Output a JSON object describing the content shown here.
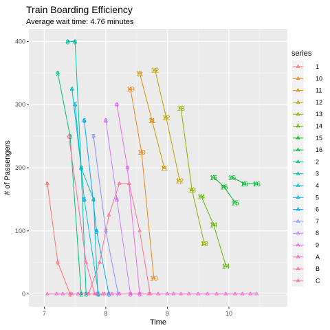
{
  "chart_data": {
    "type": "line",
    "title": "Train Boarding Efficiency",
    "subtitle": "Average wait time: 4.76 minutes",
    "xlabel": "Time",
    "ylabel": "# of Passengers",
    "xlim": [
      6.75,
      10.95
    ],
    "ylim": [
      -20,
      420
    ],
    "x_ticks": [
      7,
      8,
      9,
      10
    ],
    "x_tick_labels": [
      "7",
      "8",
      "9",
      "10"
    ],
    "y_ticks": [
      0,
      100,
      200,
      300,
      400
    ],
    "y_tick_labels": [
      "0",
      "100",
      "200",
      "300",
      "400"
    ],
    "grid": true,
    "legend_title": "series",
    "legend_position": "right",
    "series": [
      {
        "name": "1",
        "color": "#F8766D",
        "points": [
          {
            "x": 7.05,
            "y": 175,
            "label": "1"
          },
          {
            "x": 7.22,
            "y": 50,
            "label": "1"
          },
          {
            "x": 7.42,
            "y": 0,
            "label": "1"
          }
        ]
      },
      {
        "name": "10",
        "color": "#E7861B",
        "points": [
          {
            "x": 8.4,
            "y": 325,
            "label": "10"
          },
          {
            "x": 8.58,
            "y": 225,
            "label": "10"
          },
          {
            "x": 8.78,
            "y": 25,
            "label": "10"
          }
        ]
      },
      {
        "name": "11",
        "color": "#D39200",
        "points": [
          {
            "x": 8.55,
            "y": 350,
            "label": "11"
          },
          {
            "x": 8.75,
            "y": 275,
            "label": "11"
          },
          {
            "x": 8.95,
            "y": 200,
            "label": "11"
          }
        ]
      },
      {
        "name": "12",
        "color": "#BB9D00",
        "points": [
          {
            "x": 8.8,
            "y": 355,
            "label": "12"
          },
          {
            "x": 8.98,
            "y": 280,
            "label": "12"
          },
          {
            "x": 9.2,
            "y": 180,
            "label": "12"
          }
        ]
      },
      {
        "name": "13",
        "color": "#93AA00",
        "points": [
          {
            "x": 9.22,
            "y": 295,
            "label": "13"
          },
          {
            "x": 9.4,
            "y": 165,
            "label": "13"
          },
          {
            "x": 9.6,
            "y": 80,
            "label": "13"
          }
        ]
      },
      {
        "name": "14",
        "color": "#5EB300",
        "points": [
          {
            "x": 9.55,
            "y": 155,
            "label": "14"
          },
          {
            "x": 9.75,
            "y": 110,
            "label": "14"
          },
          {
            "x": 9.95,
            "y": 45,
            "label": "14"
          }
        ]
      },
      {
        "name": "15",
        "color": "#00B81F",
        "points": [
          {
            "x": 9.75,
            "y": 185,
            "label": "15"
          },
          {
            "x": 9.92,
            "y": 170,
            "label": "15"
          },
          {
            "x": 10.1,
            "y": 145,
            "label": "15"
          }
        ]
      },
      {
        "name": "16",
        "color": "#00BA38",
        "points": [
          {
            "x": 10.05,
            "y": 185,
            "label": "16"
          },
          {
            "x": 10.25,
            "y": 175,
            "label": "16"
          },
          {
            "x": 10.45,
            "y": 175,
            "label": "16"
          }
        ]
      },
      {
        "name": "2",
        "color": "#00BF74",
        "points": [
          {
            "x": 7.22,
            "y": 350,
            "label": "2"
          },
          {
            "x": 7.42,
            "y": 250,
            "label": "2"
          },
          {
            "x": 7.6,
            "y": 0,
            "label": "2"
          }
        ]
      },
      {
        "name": "3",
        "color": "#00C19F",
        "points": [
          {
            "x": 7.38,
            "y": 400,
            "label": "3"
          },
          {
            "x": 7.5,
            "y": 400,
            "label": "3"
          },
          {
            "x": 7.6,
            "y": 200,
            "label": "3"
          },
          {
            "x": 7.68,
            "y": 0,
            "label": "3"
          }
        ]
      },
      {
        "name": "4",
        "color": "#00BFC4",
        "points": [
          {
            "x": 7.45,
            "y": 325,
            "label": "4"
          },
          {
            "x": 7.6,
            "y": 200,
            "label": "4"
          },
          {
            "x": 7.8,
            "y": 150,
            "label": "4"
          },
          {
            "x": 7.87,
            "y": 0,
            "label": "4"
          }
        ]
      },
      {
        "name": "5",
        "color": "#00B8E7",
        "points": [
          {
            "x": 7.5,
            "y": 300,
            "label": "5"
          },
          {
            "x": 7.65,
            "y": 150,
            "label": "5"
          },
          {
            "x": 7.88,
            "y": 0,
            "label": "5"
          }
        ]
      },
      {
        "name": "6",
        "color": "#00A9FF",
        "points": [
          {
            "x": 7.65,
            "y": 275,
            "label": "6"
          },
          {
            "x": 7.85,
            "y": 100,
            "label": "6"
          },
          {
            "x": 8.05,
            "y": 0,
            "label": "6"
          }
        ]
      },
      {
        "name": "7",
        "color": "#8494FF",
        "points": [
          {
            "x": 7.8,
            "y": 250,
            "label": "7"
          },
          {
            "x": 8.0,
            "y": 100,
            "label": "7"
          },
          {
            "x": 8.2,
            "y": 0,
            "label": "7"
          }
        ]
      },
      {
        "name": "8",
        "color": "#C77CFF",
        "points": [
          {
            "x": 8.0,
            "y": 275,
            "label": "8"
          },
          {
            "x": 8.18,
            "y": 150,
            "label": "8"
          },
          {
            "x": 8.4,
            "y": 0,
            "label": "8"
          }
        ]
      },
      {
        "name": "9",
        "color": "#ED68ED",
        "points": [
          {
            "x": 8.18,
            "y": 300,
            "label": "9"
          },
          {
            "x": 8.35,
            "y": 200,
            "label": "9"
          },
          {
            "x": 8.55,
            "y": 0,
            "label": "9"
          }
        ]
      },
      {
        "name": "A",
        "color": "#FF61CC",
        "points": [
          {
            "x": 7.05,
            "y": 0
          },
          {
            "x": 7.2,
            "y": 0
          },
          {
            "x": 7.3,
            "y": 0
          },
          {
            "x": 7.45,
            "y": 0
          },
          {
            "x": 7.55,
            "y": 0
          },
          {
            "x": 7.72,
            "y": 0
          },
          {
            "x": 7.85,
            "y": 0
          },
          {
            "x": 7.98,
            "y": 0
          },
          {
            "x": 8.1,
            "y": 0
          },
          {
            "x": 8.22,
            "y": 0
          },
          {
            "x": 8.4,
            "y": 0
          },
          {
            "x": 8.55,
            "y": 0
          },
          {
            "x": 8.7,
            "y": 0
          },
          {
            "x": 8.85,
            "y": 0
          },
          {
            "x": 9.0,
            "y": 0
          },
          {
            "x": 9.1,
            "y": 0
          },
          {
            "x": 9.22,
            "y": 0
          },
          {
            "x": 9.35,
            "y": 0
          },
          {
            "x": 9.5,
            "y": 0
          },
          {
            "x": 9.65,
            "y": 0
          },
          {
            "x": 9.8,
            "y": 0
          },
          {
            "x": 9.95,
            "y": 0
          },
          {
            "x": 10.1,
            "y": 0
          },
          {
            "x": 10.22,
            "y": 0
          },
          {
            "x": 10.35,
            "y": 0
          },
          {
            "x": 10.45,
            "y": 0
          }
        ]
      },
      {
        "name": "B",
        "color": "#FF67A4",
        "points": [
          {
            "x": 7.4,
            "y": 250
          },
          {
            "x": 7.68,
            "y": 50
          },
          {
            "x": 7.82,
            "y": 0
          },
          {
            "x": 7.95,
            "y": 0
          }
        ]
      },
      {
        "name": "C",
        "color": "#FF6C91",
        "points": [
          {
            "x": 7.72,
            "y": 0
          },
          {
            "x": 7.9,
            "y": 50
          },
          {
            "x": 8.05,
            "y": 125
          },
          {
            "x": 8.22,
            "y": 175
          },
          {
            "x": 8.38,
            "y": 175
          },
          {
            "x": 8.55,
            "y": 100
          },
          {
            "x": 8.72,
            "y": 0
          }
        ]
      }
    ]
  }
}
